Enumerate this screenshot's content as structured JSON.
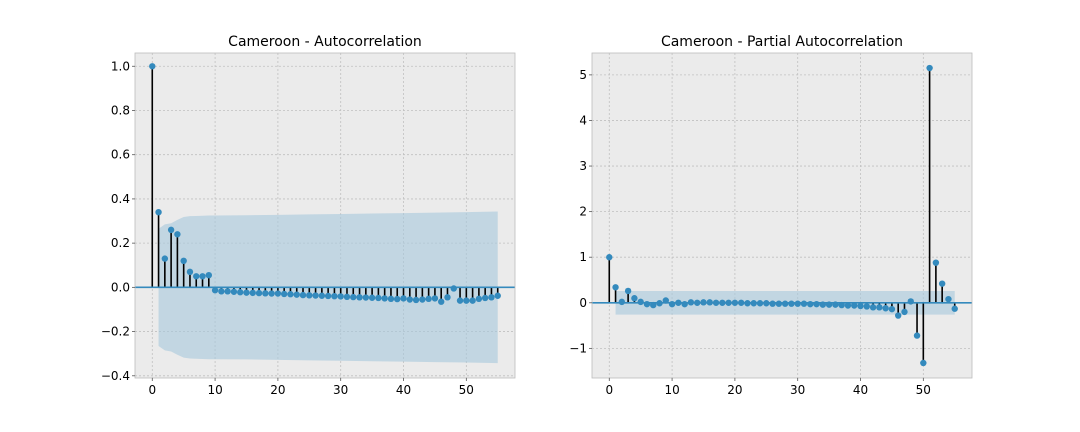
{
  "figure": {
    "background": "#ffffff"
  },
  "chart_data": [
    {
      "type": "stem",
      "title": "Cameroon - Autocorrelation",
      "xlabel": "",
      "ylabel": "",
      "xlim": [
        -2.75,
        57.75
      ],
      "ylim": [
        -0.41,
        1.06
      ],
      "xticks": [
        0,
        10,
        20,
        30,
        40,
        50
      ],
      "xtick_labels": [
        "0",
        "10",
        "20",
        "30",
        "40",
        "50"
      ],
      "yticks": [
        -0.4,
        -0.2,
        0.0,
        0.2,
        0.4,
        0.6,
        0.8,
        1.0
      ],
      "ytick_labels": [
        "−0.4",
        "−0.2",
        "0.0",
        "0.2",
        "0.4",
        "0.6",
        "0.8",
        "1.0"
      ],
      "grid": true,
      "colors": {
        "marker": "#348abd",
        "stem": "#000000",
        "band": "#a6c8dc",
        "zero_line": "#348abd",
        "background": "#ebebeb",
        "grid": "#c0c0c0"
      },
      "x": [
        0,
        1,
        2,
        3,
        4,
        5,
        6,
        7,
        8,
        9,
        10,
        11,
        12,
        13,
        14,
        15,
        16,
        17,
        18,
        19,
        20,
        21,
        22,
        23,
        24,
        25,
        26,
        27,
        28,
        29,
        30,
        31,
        32,
        33,
        34,
        35,
        36,
        37,
        38,
        39,
        40,
        41,
        42,
        43,
        44,
        45,
        46,
        47,
        48,
        49,
        50,
        51,
        52,
        53,
        54,
        55
      ],
      "values": [
        1.0,
        0.34,
        0.13,
        0.26,
        0.24,
        0.12,
        0.07,
        0.05,
        0.05,
        0.055,
        -0.013,
        -0.018,
        -0.018,
        -0.02,
        -0.022,
        -0.024,
        -0.025,
        -0.026,
        -0.027,
        -0.028,
        -0.028,
        -0.03,
        -0.031,
        -0.033,
        -0.035,
        -0.036,
        -0.037,
        -0.038,
        -0.039,
        -0.04,
        -0.041,
        -0.043,
        -0.044,
        -0.045,
        -0.046,
        -0.047,
        -0.048,
        -0.05,
        -0.052,
        -0.053,
        -0.05,
        -0.055,
        -0.057,
        -0.055,
        -0.052,
        -0.05,
        -0.065,
        -0.045,
        -0.005,
        -0.06,
        -0.06,
        -0.06,
        -0.052,
        -0.048,
        -0.045,
        -0.038
      ],
      "band": {
        "x": [
          1,
          2,
          3,
          4,
          5,
          6,
          7,
          8,
          9,
          10,
          15,
          20,
          25,
          30,
          35,
          40,
          45,
          50,
          55
        ],
        "upper": [
          0.265,
          0.285,
          0.29,
          0.305,
          0.318,
          0.322,
          0.323,
          0.324,
          0.325,
          0.325,
          0.326,
          0.328,
          0.33,
          0.332,
          0.334,
          0.336,
          0.338,
          0.34,
          0.343
        ],
        "lower": [
          -0.265,
          -0.285,
          -0.29,
          -0.305,
          -0.318,
          -0.322,
          -0.323,
          -0.324,
          -0.325,
          -0.325,
          -0.326,
          -0.328,
          -0.33,
          -0.332,
          -0.334,
          -0.336,
          -0.338,
          -0.34,
          -0.343
        ]
      }
    },
    {
      "type": "stem",
      "title": "Cameroon - Partial Autocorrelation",
      "xlabel": "",
      "ylabel": "",
      "xlim": [
        -2.75,
        57.75
      ],
      "ylim": [
        -1.65,
        5.48
      ],
      "xticks": [
        0,
        10,
        20,
        30,
        40,
        50
      ],
      "xtick_labels": [
        "0",
        "10",
        "20",
        "30",
        "40",
        "50"
      ],
      "yticks": [
        -1,
        0,
        1,
        2,
        3,
        4,
        5
      ],
      "ytick_labels": [
        "−1",
        "0",
        "1",
        "2",
        "3",
        "4",
        "5"
      ],
      "grid": true,
      "colors": {
        "marker": "#348abd",
        "stem": "#000000",
        "band": "#a6c8dc",
        "zero_line": "#348abd",
        "background": "#ebebeb",
        "grid": "#c0c0c0"
      },
      "x": [
        0,
        1,
        2,
        3,
        4,
        5,
        6,
        7,
        8,
        9,
        10,
        11,
        12,
        13,
        14,
        15,
        16,
        17,
        18,
        19,
        20,
        21,
        22,
        23,
        24,
        25,
        26,
        27,
        28,
        29,
        30,
        31,
        32,
        33,
        34,
        35,
        36,
        37,
        38,
        39,
        40,
        41,
        42,
        43,
        44,
        45,
        46,
        47,
        48,
        49,
        50,
        51,
        52,
        53,
        54,
        55
      ],
      "values": [
        1.0,
        0.34,
        0.02,
        0.26,
        0.1,
        0.02,
        -0.03,
        -0.05,
        -0.01,
        0.05,
        -0.03,
        0.0,
        -0.03,
        0.01,
        0.0,
        0.01,
        0.01,
        0.0,
        0.0,
        0.0,
        0.0,
        0.0,
        -0.01,
        -0.01,
        -0.01,
        -0.01,
        -0.02,
        -0.02,
        -0.02,
        -0.02,
        -0.02,
        -0.02,
        -0.03,
        -0.03,
        -0.04,
        -0.04,
        -0.04,
        -0.05,
        -0.06,
        -0.06,
        -0.07,
        -0.08,
        -0.1,
        -0.1,
        -0.12,
        -0.14,
        -0.28,
        -0.2,
        0.03,
        -0.72,
        -1.32,
        5.15,
        0.88,
        0.42,
        0.08,
        -0.13
      ],
      "band": {
        "x": [
          1,
          55
        ],
        "upper": [
          0.26,
          0.26
        ],
        "lower": [
          -0.26,
          -0.26
        ]
      }
    }
  ]
}
